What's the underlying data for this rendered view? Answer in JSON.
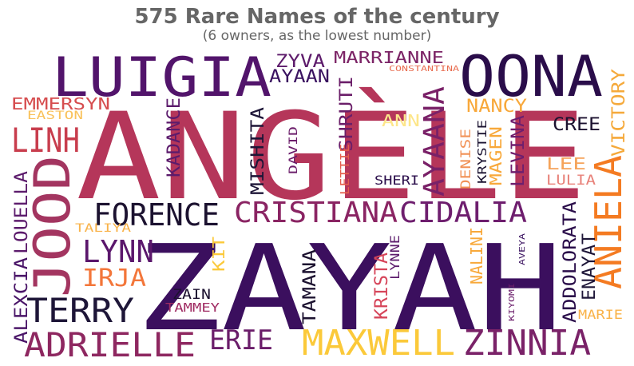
{
  "title": "575 Rare Names of the century",
  "subtitle": "(6 owners, as the lowest number)",
  "words": [
    {
      "text": "ANGÈLE",
      "color": "#b5365a"
    },
    {
      "text": "ZAYAH",
      "color": "#3b0f5e"
    },
    {
      "text": "LUIGIA",
      "color": "#52146b"
    },
    {
      "text": "OONA",
      "color": "#2a0d4a"
    },
    {
      "text": "JOOD",
      "color": "#a33560"
    },
    {
      "text": "ANIELA",
      "color": "#f47b22"
    },
    {
      "text": "LINH",
      "color": "#c83d4d"
    },
    {
      "text": "FORENCE",
      "color": "#1c1230"
    },
    {
      "text": "CRISTIANA",
      "color": "#8a2463"
    },
    {
      "text": "CIDALIA",
      "color": "#6e1e6e"
    },
    {
      "text": "MAXWELL",
      "color": "#fbc93a"
    },
    {
      "text": "ZINNIA",
      "color": "#7a2268"
    },
    {
      "text": "ADRIELLE",
      "color": "#8e2760"
    },
    {
      "text": "TERRY",
      "color": "#1e1638"
    },
    {
      "text": "LYNN",
      "color": "#5b176c"
    },
    {
      "text": "IRJA",
      "color": "#f3763a"
    },
    {
      "text": "ERIE",
      "color": "#6b1d6a"
    },
    {
      "text": "AYAANA",
      "color": "#7a2168"
    },
    {
      "text": "MARRIANNE",
      "color": "#7c2466"
    },
    {
      "text": "ZYVA",
      "color": "#5d1b6b"
    },
    {
      "text": "AYAAN",
      "color": "#3a1260"
    },
    {
      "text": "CONSTANTINA",
      "color": "#e86c4f"
    },
    {
      "text": "NANCY",
      "color": "#f8a83a"
    },
    {
      "text": "CREE",
      "color": "#1c1230"
    },
    {
      "text": "VICTORY",
      "color": "#f5a93a"
    },
    {
      "text": "EMMERSYN",
      "color": "#d64d4f"
    },
    {
      "text": "EASTON",
      "color": "#f9c25b"
    },
    {
      "text": "KADANCE",
      "color": "#5c1b6c"
    },
    {
      "text": "SHRUTI",
      "color": "#6b1e69"
    },
    {
      "text": "MISHITA",
      "color": "#1e1638"
    },
    {
      "text": "DAVID",
      "color": "#6b1d6a"
    },
    {
      "text": "LETTIE",
      "color": "#e55e4c"
    },
    {
      "text": "ANN",
      "color": "#fde68a"
    },
    {
      "text": "SHERI",
      "color": "#2a0d4a"
    },
    {
      "text": "DENISE",
      "color": "#f19257"
    },
    {
      "text": "KRYSTIE",
      "color": "#1a1230"
    },
    {
      "text": "MAGEN",
      "color": "#f8a83a"
    },
    {
      "text": "LEVINA",
      "color": "#6e1e6e"
    },
    {
      "text": "LEE",
      "color": "#f5a35a"
    },
    {
      "text": "LULIA",
      "color": "#e8827a"
    },
    {
      "text": "LOUELLA",
      "color": "#5c1b6c"
    },
    {
      "text": "ALEXCIA",
      "color": "#4a1568"
    },
    {
      "text": "TALIYA",
      "color": "#f9b34a"
    },
    {
      "text": "KIT",
      "color": "#fbc93a"
    },
    {
      "text": "ZAIN",
      "color": "#1c1230"
    },
    {
      "text": "TAMMEY",
      "color": "#a02c63"
    },
    {
      "text": "TAMANA",
      "color": "#1c1230"
    },
    {
      "text": "KRISTA",
      "color": "#d6455a"
    },
    {
      "text": "LYNNE",
      "color": "#5c1b6c"
    },
    {
      "text": "NALINI",
      "color": "#f8a83a"
    },
    {
      "text": "KIYOMI",
      "color": "#6b1d6a"
    },
    {
      "text": "AVEYA",
      "color": "#3a1260"
    },
    {
      "text": "ADDOLORATA",
      "color": "#2a0d4a"
    },
    {
      "text": "ENAYAT",
      "color": "#1e1638"
    },
    {
      "text": "MARIE",
      "color": "#f9b34a"
    }
  ]
}
